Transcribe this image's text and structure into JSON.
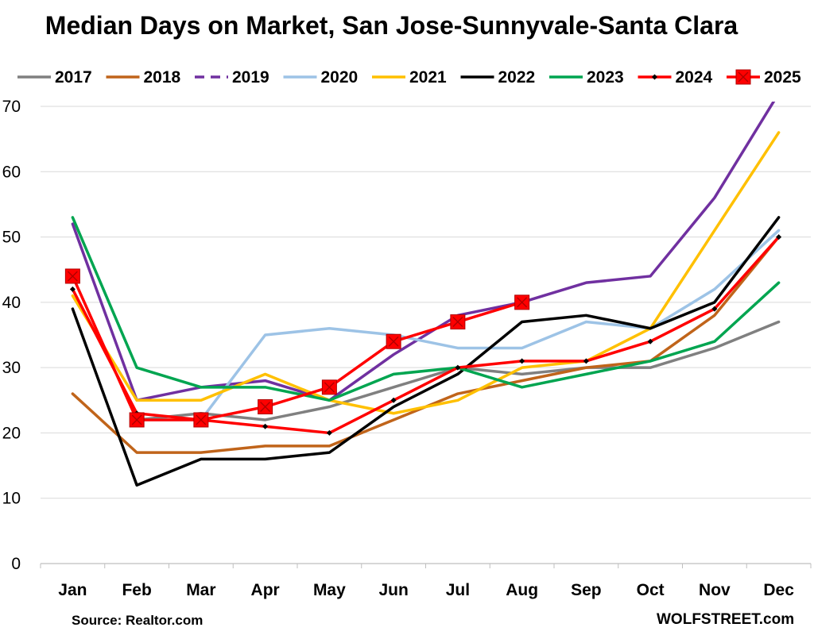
{
  "chart_data": {
    "type": "line",
    "title": "Median Days on Market, San Jose-Sunnyvale-Santa Clara",
    "xlabel": "",
    "ylabel": "",
    "categories": [
      "Jan",
      "Feb",
      "Mar",
      "Apr",
      "May",
      "Jun",
      "Jul",
      "Aug",
      "Sep",
      "Oct",
      "Nov",
      "Dec"
    ],
    "ylim": [
      0,
      70
    ],
    "yticks": [
      0,
      10,
      20,
      30,
      40,
      50,
      60,
      70
    ],
    "grid": true,
    "legend_position": "top",
    "series": [
      {
        "name": "2017",
        "color": "#808080",
        "dash": "solid",
        "marker": "none",
        "values": [
          null,
          22,
          23,
          22,
          24,
          27,
          30,
          29,
          30,
          30,
          33,
          37
        ]
      },
      {
        "name": "2018",
        "color": "#C0641A",
        "dash": "solid",
        "marker": "none",
        "values": [
          26,
          17,
          17,
          18,
          18,
          22,
          26,
          28,
          30,
          31,
          38,
          50
        ]
      },
      {
        "name": "2019",
        "color": "#7030A0",
        "dash": "dashed",
        "marker": "none",
        "values": [
          52,
          25,
          27,
          28,
          25,
          32,
          38,
          40,
          43,
          44,
          56,
          72
        ]
      },
      {
        "name": "2020",
        "color": "#9DC3E6",
        "dash": "solid",
        "marker": "none",
        "values": [
          null,
          22,
          22,
          35,
          36,
          35,
          33,
          33,
          37,
          36,
          42,
          51
        ]
      },
      {
        "name": "2021",
        "color": "#FFC000",
        "dash": "solid",
        "marker": "none",
        "values": [
          41,
          25,
          25,
          29,
          25,
          23,
          25,
          30,
          31,
          36,
          51,
          66
        ]
      },
      {
        "name": "2022",
        "color": "#000000",
        "dash": "solid",
        "marker": "none",
        "values": [
          39,
          12,
          16,
          16,
          17,
          24,
          29,
          37,
          38,
          36,
          40,
          53
        ]
      },
      {
        "name": "2023",
        "color": "#00A550",
        "dash": "solid",
        "marker": "none",
        "values": [
          53,
          30,
          27,
          27,
          25,
          29,
          30,
          27,
          29,
          31,
          34,
          43
        ]
      },
      {
        "name": "2024",
        "color": "#FF0000",
        "dash": "solid",
        "marker": "diamond",
        "values": [
          42,
          23,
          22,
          21,
          20,
          25,
          30,
          31,
          31,
          34,
          39,
          50
        ]
      },
      {
        "name": "2025",
        "color": "#FF0000",
        "dash": "solid",
        "marker": "square",
        "values": [
          44,
          22,
          22,
          24,
          27,
          34,
          37,
          40,
          null,
          null,
          null,
          null
        ]
      }
    ],
    "source": "Source: Realtor.com",
    "credit": "WOLFSTREET.com"
  }
}
